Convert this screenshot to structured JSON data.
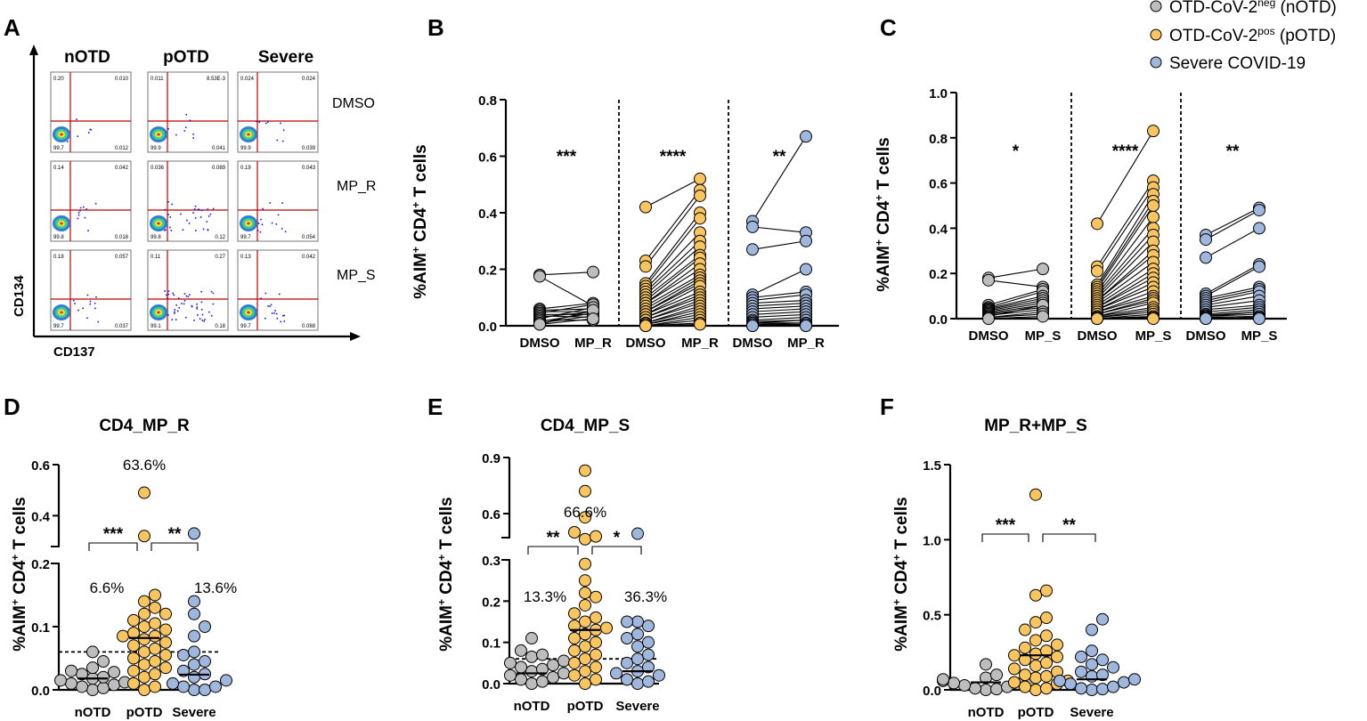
{
  "colors": {
    "nOTD": "#bdbdbd",
    "pOTD": "#f9c55f",
    "Severe": "#9fb7dc",
    "flow_gate": "#c00000",
    "flow_dots": "#1a1ae6"
  },
  "legend": {
    "items": [
      {
        "group": "nOTD",
        "prefix": "OTD-CoV-2",
        "sup": "neg",
        "suffix": " (nOTD)"
      },
      {
        "group": "pOTD",
        "prefix": "OTD-CoV-2",
        "sup": "pos",
        "suffix": " (pOTD)"
      },
      {
        "group": "Severe",
        "text": "Severe COVID-19"
      }
    ]
  },
  "panels": {
    "A": "A",
    "B": "B",
    "C": "C",
    "D": "D",
    "E": "E",
    "F": "F"
  },
  "y_axis_label": {
    "main": "%AIM",
    "sup": "+",
    "rest": " CD4",
    "sup2": "+",
    "end": " T cells"
  },
  "flow": {
    "x_label": "CD137",
    "y_label": "CD134",
    "columns": [
      "nOTD",
      "pOTD",
      "Severe"
    ],
    "rows": [
      "DMSO",
      "MP_R",
      "MP_S"
    ],
    "quadrant_values": [
      [
        [
          "0.20",
          "0.010",
          "99.7",
          "0.012"
        ],
        [
          "0.011",
          "8.53E-3",
          "99.9",
          "0.041"
        ],
        [
          "0.024",
          "0.024",
          "99.9",
          "0.039"
        ]
      ],
      [
        [
          "0.14",
          "0.042",
          "99.8",
          "0.018"
        ],
        [
          "0.036",
          "0.089",
          "99.8",
          "0.12"
        ],
        [
          "0.19",
          "0.043",
          "99.7",
          "0.054"
        ]
      ],
      [
        [
          "0.18",
          "0.057",
          "99.7",
          "0.037"
        ],
        [
          "0.11",
          "0.27",
          "99.1",
          "0.18"
        ],
        [
          "0.13",
          "0.042",
          "99.7",
          "0.088"
        ]
      ]
    ]
  },
  "chart_data": [
    {
      "id": "B",
      "type": "scatter",
      "subtype": "paired",
      "ylim": [
        0,
        0.8
      ],
      "yticks": [
        "0.0",
        "0.2",
        "0.4",
        "0.6",
        "0.8"
      ],
      "categories": [
        "DMSO",
        "MP_R",
        "DMSO",
        "MP_R",
        "DMSO",
        "MP_R"
      ],
      "significance": [
        "***",
        "****",
        "**"
      ],
      "groups": [
        {
          "group": "nOTD",
          "dmso": [
            0.18,
            0.175,
            0.06,
            0.055,
            0.05,
            0.045,
            0.04,
            0.035,
            0.03,
            0.025,
            0.02,
            0.015,
            0.01,
            0.005,
            0.005
          ],
          "stim": [
            0.19,
            0.07,
            0.08,
            0.06,
            0.05,
            0.075,
            0.04,
            0.03,
            0.05,
            0.065,
            0.02,
            0.045,
            0.035,
            0.055,
            0.025
          ]
        },
        {
          "group": "pOTD",
          "dmso": [
            0.42,
            0.23,
            0.21,
            0.15,
            0.14,
            0.13,
            0.12,
            0.11,
            0.1,
            0.09,
            0.08,
            0.08,
            0.07,
            0.06,
            0.05,
            0.05,
            0.04,
            0.04,
            0.03,
            0.03,
            0.02,
            0.02,
            0.01,
            0.01,
            0.005,
            0.005,
            0.0,
            0.0,
            0.0,
            0.0
          ],
          "stim": [
            0.52,
            0.48,
            0.46,
            0.4,
            0.38,
            0.33,
            0.3,
            0.28,
            0.25,
            0.24,
            0.22,
            0.2,
            0.18,
            0.17,
            0.16,
            0.15,
            0.14,
            0.12,
            0.11,
            0.1,
            0.09,
            0.08,
            0.07,
            0.06,
            0.05,
            0.04,
            0.03,
            0.02,
            0.01,
            0.005
          ]
        },
        {
          "group": "Severe",
          "dmso": [
            0.37,
            0.35,
            0.27,
            0.11,
            0.1,
            0.09,
            0.08,
            0.07,
            0.06,
            0.05,
            0.04,
            0.03,
            0.02,
            0.015,
            0.01,
            0.01,
            0.005,
            0.005,
            0.0,
            0.0
          ],
          "stim": [
            0.67,
            0.33,
            0.3,
            0.2,
            0.12,
            0.11,
            0.09,
            0.08,
            0.07,
            0.06,
            0.05,
            0.04,
            0.03,
            0.02,
            0.02,
            0.01,
            0.01,
            0.005,
            0.0,
            0.0
          ]
        }
      ]
    },
    {
      "id": "C",
      "type": "scatter",
      "subtype": "paired",
      "ylim": [
        0,
        1.0
      ],
      "yticks": [
        "0.0",
        "0.2",
        "0.4",
        "0.6",
        "0.8",
        "1.0"
      ],
      "categories": [
        "DMSO",
        "MP_S",
        "DMSO",
        "MP_S",
        "DMSO",
        "MP_S"
      ],
      "significance": [
        "*",
        "****",
        "**"
      ],
      "groups": [
        {
          "group": "nOTD",
          "dmso": [
            0.18,
            0.17,
            0.06,
            0.05,
            0.045,
            0.04,
            0.035,
            0.03,
            0.025,
            0.02,
            0.015,
            0.01,
            0.005,
            0.005,
            0.0
          ],
          "stim": [
            0.22,
            0.14,
            0.13,
            0.12,
            0.1,
            0.09,
            0.08,
            0.07,
            0.06,
            0.05,
            0.04,
            0.06,
            0.03,
            0.02,
            0.01
          ]
        },
        {
          "group": "pOTD",
          "dmso": [
            0.42,
            0.23,
            0.21,
            0.15,
            0.14,
            0.13,
            0.12,
            0.11,
            0.1,
            0.09,
            0.08,
            0.08,
            0.07,
            0.06,
            0.05,
            0.05,
            0.04,
            0.04,
            0.03,
            0.03,
            0.02,
            0.02,
            0.01,
            0.01,
            0.005,
            0.005,
            0.0,
            0.0,
            0.0,
            0.0
          ],
          "stim": [
            0.83,
            0.61,
            0.58,
            0.55,
            0.52,
            0.5,
            0.45,
            0.4,
            0.37,
            0.34,
            0.3,
            0.28,
            0.25,
            0.22,
            0.2,
            0.18,
            0.16,
            0.14,
            0.12,
            0.1,
            0.09,
            0.08,
            0.07,
            0.05,
            0.04,
            0.03,
            0.02,
            0.01,
            0.005,
            0.0
          ]
        },
        {
          "group": "Severe",
          "dmso": [
            0.37,
            0.35,
            0.27,
            0.11,
            0.1,
            0.09,
            0.08,
            0.07,
            0.06,
            0.05,
            0.04,
            0.03,
            0.02,
            0.015,
            0.01,
            0.01,
            0.005,
            0.005,
            0.0,
            0.0
          ],
          "stim": [
            0.49,
            0.48,
            0.4,
            0.24,
            0.23,
            0.14,
            0.13,
            0.12,
            0.1,
            0.08,
            0.06,
            0.05,
            0.04,
            0.03,
            0.03,
            0.02,
            0.01,
            0.01,
            0.005,
            0.0
          ]
        }
      ]
    },
    {
      "id": "D",
      "type": "scatter",
      "subtype": "dot-median",
      "title": "CD4_MP_R",
      "ylim": [
        0,
        0.6
      ],
      "axis_break": [
        0.2,
        0.3
      ],
      "yticks": [
        "0.0",
        "0.1",
        "0.2",
        "0.4",
        "0.6"
      ],
      "categories": [
        "nOTD",
        "pOTD",
        "Severe"
      ],
      "threshold": 0.06,
      "medians": [
        0.018,
        0.082,
        0.024
      ],
      "percent_labels": [
        "6.6%",
        "63.6%",
        "13.6%"
      ],
      "comparisons": [
        {
          "pair": [
            "nOTD",
            "pOTD"
          ],
          "label": "***"
        },
        {
          "pair": [
            "pOTD",
            "Severe"
          ],
          "label": "**"
        }
      ],
      "values": {
        "nOTD": [
          0.06,
          0.045,
          0.035,
          0.03,
          0.028,
          0.025,
          0.02,
          0.018,
          0.015,
          0.012,
          0.01,
          0.008,
          0.005,
          0.003,
          0.0
        ],
        "pOTD": [
          0.49,
          0.32,
          0.15,
          0.14,
          0.13,
          0.12,
          0.12,
          0.11,
          0.105,
          0.1,
          0.095,
          0.09,
          0.085,
          0.085,
          0.08,
          0.075,
          0.07,
          0.065,
          0.06,
          0.055,
          0.05,
          0.045,
          0.04,
          0.035,
          0.03,
          0.025,
          0.02,
          0.01,
          0.005,
          0.0
        ],
        "Severe": [
          0.33,
          0.14,
          0.12,
          0.1,
          0.085,
          0.06,
          0.055,
          0.045,
          0.04,
          0.03,
          0.025,
          0.02,
          0.015,
          0.01,
          0.005,
          0.005,
          0.0,
          0.0
        ]
      }
    },
    {
      "id": "E",
      "type": "scatter",
      "subtype": "dot-median",
      "title": "CD4_MP_S",
      "ylim": [
        0,
        0.9
      ],
      "axis_break": [
        0.3,
        0.5
      ],
      "yticks": [
        "0.0",
        "0.1",
        "0.2",
        "0.3",
        "0.6",
        "0.9"
      ],
      "categories": [
        "nOTD",
        "pOTD",
        "Severe"
      ],
      "threshold": 0.06,
      "medians": [
        0.025,
        0.13,
        0.03
      ],
      "percent_labels": [
        "13.3%",
        "66.6%",
        "36.3%"
      ],
      "comparisons": [
        {
          "pair": [
            "nOTD",
            "pOTD"
          ],
          "label": "**"
        },
        {
          "pair": [
            "pOTD",
            "Severe"
          ],
          "label": "*"
        }
      ],
      "values": {
        "nOTD": [
          0.11,
          0.08,
          0.07,
          0.065,
          0.055,
          0.05,
          0.045,
          0.04,
          0.035,
          0.03,
          0.025,
          0.02,
          0.015,
          0.01,
          0.005,
          0.0
        ],
        "pOTD": [
          0.83,
          0.72,
          0.58,
          0.5,
          0.47,
          0.45,
          0.29,
          0.25,
          0.22,
          0.21,
          0.19,
          0.17,
          0.16,
          0.15,
          0.14,
          0.135,
          0.13,
          0.12,
          0.11,
          0.1,
          0.09,
          0.08,
          0.07,
          0.06,
          0.05,
          0.04,
          0.03,
          0.02,
          0.01,
          0.0
        ],
        "Severe": [
          0.49,
          0.15,
          0.15,
          0.14,
          0.12,
          0.11,
          0.1,
          0.09,
          0.07,
          0.06,
          0.05,
          0.04,
          0.03,
          0.025,
          0.02,
          0.01,
          0.005,
          0.0
        ]
      }
    },
    {
      "id": "F",
      "type": "scatter",
      "subtype": "dot-median",
      "title": "MP_R+MP_S",
      "ylim": [
        0,
        1.5
      ],
      "yticks": [
        "0.0",
        "0.5",
        "1.0",
        "1.5"
      ],
      "categories": [
        "nOTD",
        "pOTD",
        "Severe"
      ],
      "medians": [
        0.05,
        0.23,
        0.07
      ],
      "comparisons": [
        {
          "pair": [
            "nOTD",
            "pOTD"
          ],
          "label": "***"
        },
        {
          "pair": [
            "pOTD",
            "Severe"
          ],
          "label": "**"
        }
      ],
      "values": {
        "nOTD": [
          0.17,
          0.1,
          0.08,
          0.07,
          0.06,
          0.05,
          0.045,
          0.04,
          0.03,
          0.02,
          0.01,
          0.005,
          0.0
        ],
        "pOTD": [
          1.3,
          0.66,
          0.63,
          0.48,
          0.45,
          0.4,
          0.36,
          0.33,
          0.3,
          0.28,
          0.26,
          0.24,
          0.23,
          0.22,
          0.2,
          0.18,
          0.16,
          0.14,
          0.12,
          0.1,
          0.09,
          0.08,
          0.06,
          0.05,
          0.04,
          0.02,
          0.01,
          0.0
        ],
        "Severe": [
          0.47,
          0.4,
          0.26,
          0.22,
          0.2,
          0.17,
          0.15,
          0.12,
          0.1,
          0.09,
          0.07,
          0.06,
          0.05,
          0.04,
          0.02,
          0.01,
          0.005,
          0.0
        ]
      }
    }
  ]
}
